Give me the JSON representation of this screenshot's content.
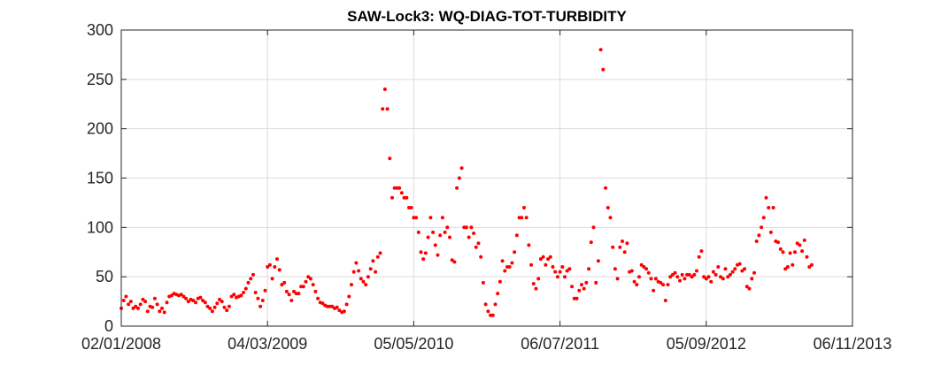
{
  "chart_data": {
    "type": "scatter",
    "title": "SAW-Lock3: WQ-DIAG-TOT-TURBIDITY",
    "xlabel": "",
    "ylabel": "",
    "x_axis": {
      "type": "date",
      "range": [
        "2008-01-02",
        "2013-11-06"
      ],
      "tick_labels": [
        "02/01/2008",
        "04/03/2009",
        "05/05/2010",
        "06/07/2011",
        "05/09/2012",
        "06/11/2013"
      ]
    },
    "y_axis": {
      "range": [
        0,
        300
      ],
      "tick_labels": [
        "0",
        "50",
        "100",
        "150",
        "200",
        "250",
        "300"
      ]
    },
    "grid": true,
    "marker_color": "#ff0000",
    "series": [
      {
        "points": [
          [
            "2008-01-02",
            18
          ],
          [
            "2008-01-09",
            26
          ],
          [
            "2008-01-16",
            30
          ],
          [
            "2008-01-23",
            22
          ],
          [
            "2008-01-30",
            25
          ],
          [
            "2008-02-06",
            18
          ],
          [
            "2008-02-13",
            20
          ],
          [
            "2008-02-20",
            18
          ],
          [
            "2008-02-27",
            22
          ],
          [
            "2008-03-05",
            27
          ],
          [
            "2008-03-12",
            25
          ],
          [
            "2008-03-19",
            15
          ],
          [
            "2008-03-26",
            20
          ],
          [
            "2008-04-02",
            19
          ],
          [
            "2008-04-09",
            28
          ],
          [
            "2008-04-16",
            22
          ],
          [
            "2008-04-23",
            15
          ],
          [
            "2008-04-30",
            18
          ],
          [
            "2008-05-07",
            14
          ],
          [
            "2008-05-14",
            24
          ],
          [
            "2008-05-21",
            30
          ],
          [
            "2008-05-28",
            31
          ],
          [
            "2008-06-04",
            33
          ],
          [
            "2008-06-11",
            32
          ],
          [
            "2008-06-18",
            31
          ],
          [
            "2008-06-25",
            32
          ],
          [
            "2008-07-02",
            30
          ],
          [
            "2008-07-09",
            28
          ],
          [
            "2008-07-16",
            25
          ],
          [
            "2008-07-23",
            27
          ],
          [
            "2008-07-30",
            26
          ],
          [
            "2008-08-06",
            24
          ],
          [
            "2008-08-13",
            28
          ],
          [
            "2008-08-20",
            29
          ],
          [
            "2008-08-27",
            26
          ],
          [
            "2008-09-03",
            24
          ],
          [
            "2008-09-10",
            20
          ],
          [
            "2008-09-17",
            18
          ],
          [
            "2008-09-24",
            15
          ],
          [
            "2008-10-01",
            19
          ],
          [
            "2008-10-08",
            23
          ],
          [
            "2008-10-15",
            27
          ],
          [
            "2008-10-22",
            25
          ],
          [
            "2008-10-29",
            19
          ],
          [
            "2008-11-05",
            16
          ],
          [
            "2008-11-12",
            20
          ],
          [
            "2008-11-19",
            30
          ],
          [
            "2008-11-26",
            32
          ],
          [
            "2008-12-03",
            29
          ],
          [
            "2008-12-10",
            30
          ],
          [
            "2008-12-17",
            31
          ],
          [
            "2008-12-24",
            34
          ],
          [
            "2008-12-31",
            38
          ],
          [
            "2009-01-07",
            44
          ],
          [
            "2009-01-14",
            48
          ],
          [
            "2009-01-21",
            52
          ],
          [
            "2009-01-28",
            34
          ],
          [
            "2009-02-04",
            28
          ],
          [
            "2009-02-11",
            20
          ],
          [
            "2009-02-18",
            26
          ],
          [
            "2009-02-25",
            36
          ],
          [
            "2009-03-04",
            60
          ],
          [
            "2009-03-11",
            62
          ],
          [
            "2009-03-18",
            48
          ],
          [
            "2009-03-25",
            60
          ],
          [
            "2009-04-01",
            68
          ],
          [
            "2009-04-08",
            57
          ],
          [
            "2009-04-15",
            42
          ],
          [
            "2009-04-22",
            44
          ],
          [
            "2009-04-29",
            35
          ],
          [
            "2009-05-06",
            32
          ],
          [
            "2009-05-13",
            26
          ],
          [
            "2009-05-20",
            35
          ],
          [
            "2009-05-27",
            33
          ],
          [
            "2009-06-03",
            33
          ],
          [
            "2009-06-10",
            40
          ],
          [
            "2009-06-17",
            40
          ],
          [
            "2009-06-24",
            45
          ],
          [
            "2009-07-01",
            50
          ],
          [
            "2009-07-08",
            48
          ],
          [
            "2009-07-15",
            42
          ],
          [
            "2009-07-22",
            35
          ],
          [
            "2009-07-29",
            28
          ],
          [
            "2009-08-05",
            24
          ],
          [
            "2009-08-12",
            23
          ],
          [
            "2009-08-19",
            21
          ],
          [
            "2009-08-26",
            20
          ],
          [
            "2009-09-02",
            20
          ],
          [
            "2009-09-09",
            20
          ],
          [
            "2009-09-16",
            18
          ],
          [
            "2009-09-23",
            19
          ],
          [
            "2009-09-30",
            16
          ],
          [
            "2009-10-07",
            14
          ],
          [
            "2009-10-14",
            15
          ],
          [
            "2009-10-21",
            22
          ],
          [
            "2009-10-28",
            30
          ],
          [
            "2009-11-04",
            42
          ],
          [
            "2009-11-11",
            55
          ],
          [
            "2009-11-18",
            64
          ],
          [
            "2009-11-25",
            56
          ],
          [
            "2009-12-02",
            48
          ],
          [
            "2009-12-09",
            45
          ],
          [
            "2009-12-16",
            42
          ],
          [
            "2009-12-23",
            50
          ],
          [
            "2009-12-30",
            58
          ],
          [
            "2010-01-06",
            66
          ],
          [
            "2010-01-13",
            55
          ],
          [
            "2010-01-20",
            70
          ],
          [
            "2010-01-27",
            74
          ],
          [
            "2010-02-03",
            220
          ],
          [
            "2010-02-10",
            240
          ],
          [
            "2010-02-17",
            220
          ],
          [
            "2010-02-24",
            170
          ],
          [
            "2010-03-03",
            130
          ],
          [
            "2010-03-10",
            140
          ],
          [
            "2010-03-17",
            140
          ],
          [
            "2010-03-24",
            140
          ],
          [
            "2010-03-31",
            135
          ],
          [
            "2010-04-07",
            130
          ],
          [
            "2010-04-14",
            130
          ],
          [
            "2010-04-21",
            120
          ],
          [
            "2010-04-28",
            120
          ],
          [
            "2010-05-05",
            110
          ],
          [
            "2010-05-12",
            110
          ],
          [
            "2010-05-19",
            95
          ],
          [
            "2010-05-26",
            75
          ],
          [
            "2010-06-02",
            68
          ],
          [
            "2010-06-09",
            74
          ],
          [
            "2010-06-16",
            90
          ],
          [
            "2010-06-23",
            110
          ],
          [
            "2010-06-30",
            95
          ],
          [
            "2010-07-07",
            82
          ],
          [
            "2010-07-14",
            72
          ],
          [
            "2010-07-21",
            92
          ],
          [
            "2010-07-28",
            110
          ],
          [
            "2010-08-04",
            95
          ],
          [
            "2010-08-11",
            100
          ],
          [
            "2010-08-18",
            90
          ],
          [
            "2010-08-25",
            67
          ],
          [
            "2010-09-01",
            65
          ],
          [
            "2010-09-08",
            140
          ],
          [
            "2010-09-15",
            150
          ],
          [
            "2010-09-22",
            160
          ],
          [
            "2010-09-29",
            100
          ],
          [
            "2010-10-06",
            100
          ],
          [
            "2010-10-13",
            90
          ],
          [
            "2010-10-20",
            100
          ],
          [
            "2010-10-27",
            94
          ],
          [
            "2010-11-03",
            80
          ],
          [
            "2010-11-10",
            84
          ],
          [
            "2010-11-17",
            70
          ],
          [
            "2010-11-24",
            44
          ],
          [
            "2010-12-01",
            22
          ],
          [
            "2010-12-08",
            15
          ],
          [
            "2010-12-15",
            11
          ],
          [
            "2010-12-22",
            11
          ],
          [
            "2010-12-29",
            22
          ],
          [
            "2011-01-05",
            33
          ],
          [
            "2011-01-12",
            45
          ],
          [
            "2011-01-19",
            66
          ],
          [
            "2011-01-26",
            56
          ],
          [
            "2011-02-02",
            60
          ],
          [
            "2011-02-09",
            60
          ],
          [
            "2011-02-16",
            64
          ],
          [
            "2011-02-23",
            75
          ],
          [
            "2011-03-02",
            92
          ],
          [
            "2011-03-09",
            110
          ],
          [
            "2011-03-16",
            110
          ],
          [
            "2011-03-23",
            120
          ],
          [
            "2011-03-30",
            110
          ],
          [
            "2011-04-06",
            82
          ],
          [
            "2011-04-13",
            62
          ],
          [
            "2011-04-20",
            43
          ],
          [
            "2011-04-27",
            38
          ],
          [
            "2011-05-04",
            48
          ],
          [
            "2011-05-11",
            68
          ],
          [
            "2011-05-18",
            70
          ],
          [
            "2011-05-25",
            62
          ],
          [
            "2011-06-01",
            68
          ],
          [
            "2011-06-08",
            70
          ],
          [
            "2011-06-15",
            60
          ],
          [
            "2011-06-22",
            55
          ],
          [
            "2011-06-29",
            50
          ],
          [
            "2011-07-06",
            55
          ],
          [
            "2011-07-13",
            60
          ],
          [
            "2011-07-20",
            50
          ],
          [
            "2011-07-27",
            56
          ],
          [
            "2011-08-03",
            58
          ],
          [
            "2011-08-10",
            40
          ],
          [
            "2011-08-17",
            28
          ],
          [
            "2011-08-24",
            28
          ],
          [
            "2011-08-31",
            36
          ],
          [
            "2011-09-07",
            42
          ],
          [
            "2011-09-14",
            38
          ],
          [
            "2011-09-21",
            44
          ],
          [
            "2011-09-28",
            58
          ],
          [
            "2011-10-05",
            85
          ],
          [
            "2011-10-12",
            100
          ],
          [
            "2011-10-19",
            44
          ],
          [
            "2011-10-26",
            66
          ],
          [
            "2011-11-02",
            280
          ],
          [
            "2011-11-09",
            260
          ],
          [
            "2011-11-16",
            140
          ],
          [
            "2011-11-23",
            120
          ],
          [
            "2011-11-30",
            110
          ],
          [
            "2011-12-07",
            80
          ],
          [
            "2011-12-14",
            58
          ],
          [
            "2011-12-21",
            48
          ],
          [
            "2011-12-28",
            80
          ],
          [
            "2012-01-04",
            86
          ],
          [
            "2012-01-11",
            75
          ],
          [
            "2012-01-18",
            84
          ],
          [
            "2012-01-25",
            55
          ],
          [
            "2012-02-01",
            56
          ],
          [
            "2012-02-08",
            45
          ],
          [
            "2012-02-15",
            42
          ],
          [
            "2012-02-22",
            50
          ],
          [
            "2012-02-29",
            62
          ],
          [
            "2012-03-07",
            60
          ],
          [
            "2012-03-14",
            58
          ],
          [
            "2012-03-21",
            54
          ],
          [
            "2012-03-28",
            48
          ],
          [
            "2012-04-04",
            36
          ],
          [
            "2012-04-11",
            48
          ],
          [
            "2012-04-18",
            45
          ],
          [
            "2012-04-25",
            44
          ],
          [
            "2012-05-02",
            42
          ],
          [
            "2012-05-09",
            26
          ],
          [
            "2012-05-16",
            42
          ],
          [
            "2012-05-23",
            50
          ],
          [
            "2012-05-30",
            52
          ],
          [
            "2012-06-06",
            54
          ],
          [
            "2012-06-13",
            50
          ],
          [
            "2012-06-20",
            46
          ],
          [
            "2012-06-27",
            52
          ],
          [
            "2012-07-04",
            48
          ],
          [
            "2012-07-11",
            52
          ],
          [
            "2012-07-18",
            52
          ],
          [
            "2012-07-25",
            50
          ],
          [
            "2012-08-01",
            52
          ],
          [
            "2012-08-08",
            56
          ],
          [
            "2012-08-15",
            70
          ],
          [
            "2012-08-22",
            76
          ],
          [
            "2012-08-29",
            50
          ],
          [
            "2012-09-05",
            48
          ],
          [
            "2012-09-12",
            50
          ],
          [
            "2012-09-19",
            45
          ],
          [
            "2012-09-26",
            55
          ],
          [
            "2012-10-03",
            52
          ],
          [
            "2012-10-10",
            60
          ],
          [
            "2012-10-17",
            50
          ],
          [
            "2012-10-24",
            48
          ],
          [
            "2012-10-31",
            58
          ],
          [
            "2012-11-07",
            50
          ],
          [
            "2012-11-14",
            52
          ],
          [
            "2012-11-21",
            55
          ],
          [
            "2012-11-28",
            58
          ],
          [
            "2012-12-05",
            62
          ],
          [
            "2012-12-12",
            63
          ],
          [
            "2012-12-19",
            56
          ],
          [
            "2012-12-26",
            58
          ],
          [
            "2013-01-02",
            40
          ],
          [
            "2013-01-09",
            38
          ],
          [
            "2013-01-16",
            48
          ],
          [
            "2013-01-23",
            54
          ],
          [
            "2013-01-30",
            86
          ],
          [
            "2013-02-06",
            92
          ],
          [
            "2013-02-13",
            100
          ],
          [
            "2013-02-20",
            110
          ],
          [
            "2013-02-27",
            130
          ],
          [
            "2013-03-06",
            120
          ],
          [
            "2013-03-13",
            95
          ],
          [
            "2013-03-20",
            120
          ],
          [
            "2013-03-27",
            86
          ],
          [
            "2013-04-03",
            85
          ],
          [
            "2013-04-10",
            78
          ],
          [
            "2013-04-17",
            75
          ],
          [
            "2013-04-24",
            58
          ],
          [
            "2013-05-01",
            60
          ],
          [
            "2013-05-08",
            74
          ],
          [
            "2013-05-15",
            62
          ],
          [
            "2013-05-22",
            75
          ],
          [
            "2013-05-29",
            84
          ],
          [
            "2013-06-05",
            82
          ],
          [
            "2013-06-12",
            76
          ],
          [
            "2013-06-19",
            87
          ],
          [
            "2013-06-26",
            70
          ],
          [
            "2013-07-03",
            60
          ],
          [
            "2013-07-10",
            62
          ]
        ]
      }
    ]
  }
}
